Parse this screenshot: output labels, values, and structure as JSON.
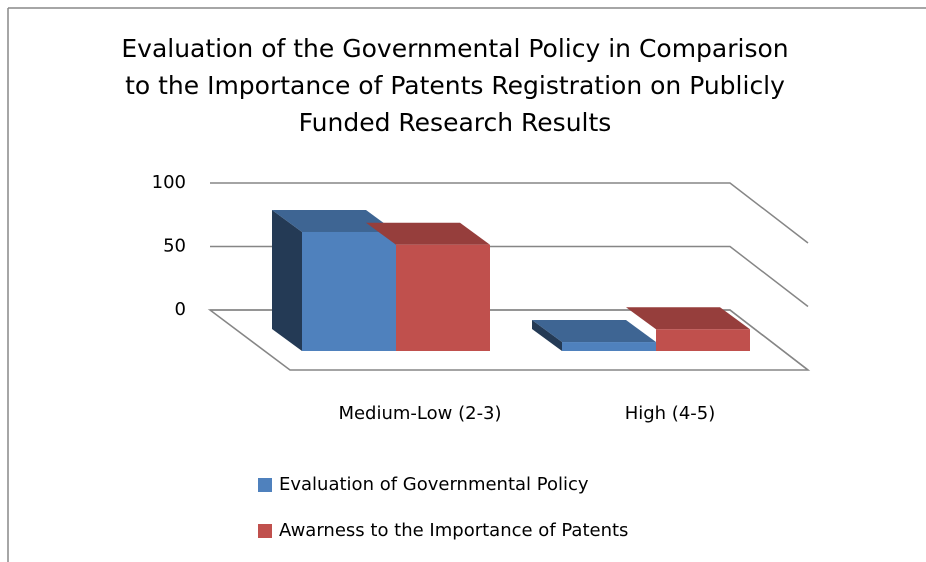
{
  "chart_data": {
    "type": "bar3d",
    "title": "Evaluation of the Governmental Policy in Comparison to the Importance of Patents Registration on Publicly Funded Research Results",
    "categories": [
      "Medium-Low (2-3)",
      "High (4-5)"
    ],
    "series": [
      {
        "name": "Evaluation of Governmental Policy",
        "color": "#4f81bd",
        "values": [
          93,
          7
        ]
      },
      {
        "name": "Awarness to the Importance of Patents",
        "color": "#c0504d",
        "values": [
          83,
          17
        ]
      }
    ],
    "ylim": [
      0,
      100
    ],
    "yticks": [
      0,
      50,
      100
    ],
    "grid": true,
    "legend": "bottom"
  }
}
